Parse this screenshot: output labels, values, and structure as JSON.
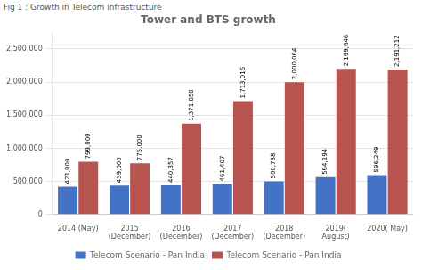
{
  "chart_data": {
    "type": "bar",
    "title": "Tower and BTS growth",
    "subtitle": "Fig 1 : Growth in Telecom infrastructure",
    "categories": [
      "2014 (May)",
      "2015\n(December)",
      "2016\n(December)",
      "2017\n(December)",
      "2018\n(December)",
      "2019(\nAugust)",
      "2020( May)"
    ],
    "series": [
      {
        "name": "Telecom Scenario - Pan India",
        "color": "#4472C4",
        "values": [
          421000,
          439000,
          440357,
          461407,
          500788,
          564194,
          596249
        ],
        "value_labels": [
          "421,000",
          "439,000",
          "440,357",
          "461,407",
          "500,788",
          "564,194",
          "596,249"
        ]
      },
      {
        "name": "Telecom Scenario - Pan India",
        "color": "#B85450",
        "values": [
          799000,
          775000,
          1371858,
          1713016,
          2000064,
          2199646,
          2191212
        ],
        "value_labels": [
          "799,000",
          "775,000",
          "1,371,858",
          "1,713,016",
          "2,000,064",
          "2,199,646",
          "2,191,212"
        ]
      }
    ],
    "ylim": [
      0,
      2750000
    ],
    "yticks": [
      0,
      {
        "value": 500000,
        "label": "500,000"
      },
      {
        "value": 1000000,
        "label": "1,000,000"
      },
      {
        "value": 1500000,
        "label": "1,500,000"
      },
      {
        "value": 2000000,
        "label": "2,000,000"
      },
      {
        "value": 2500000,
        "label": "2,500,000"
      }
    ],
    "grid": true,
    "legend": "bottom",
    "data_labels": true
  }
}
